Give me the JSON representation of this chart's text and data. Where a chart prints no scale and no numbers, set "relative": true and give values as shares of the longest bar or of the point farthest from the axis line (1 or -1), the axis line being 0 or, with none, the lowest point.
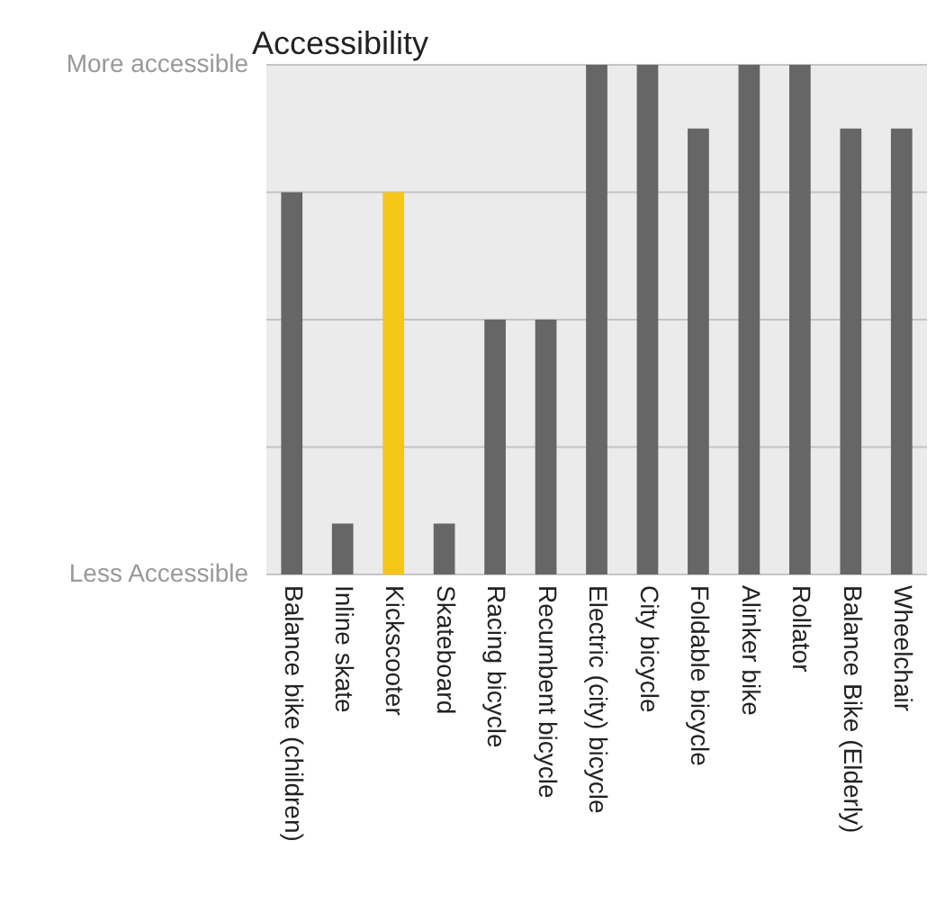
{
  "chart_data": {
    "type": "bar",
    "title": "Accessibility",
    "categories": [
      "Balance bike (children)",
      "Inline skate",
      "Kickscooter",
      "Skateboard",
      "Racing bicycle",
      "Recumbent bicycle",
      "Electric (city) bicycle",
      "City bicycle",
      "Foldable bicycle",
      "Alinker bike",
      "Rollator",
      "Balance Bike (Elderly)",
      "Wheelchair"
    ],
    "values": [
      0.75,
      0.1,
      0.75,
      0.1,
      0.5,
      0.5,
      1,
      1,
      0.875,
      1,
      1,
      0.875,
      0.875
    ],
    "colors": [
      "#666666",
      "#666666",
      "#f5c518",
      "#666666",
      "#666666",
      "#666666",
      "#666666",
      "#666666",
      "#666666",
      "#666666",
      "#666666",
      "#666666",
      "#666666"
    ],
    "relative": true,
    "annotations": [
      "More accessible",
      "Less Accessible"
    ],
    "grid": "y"
  }
}
